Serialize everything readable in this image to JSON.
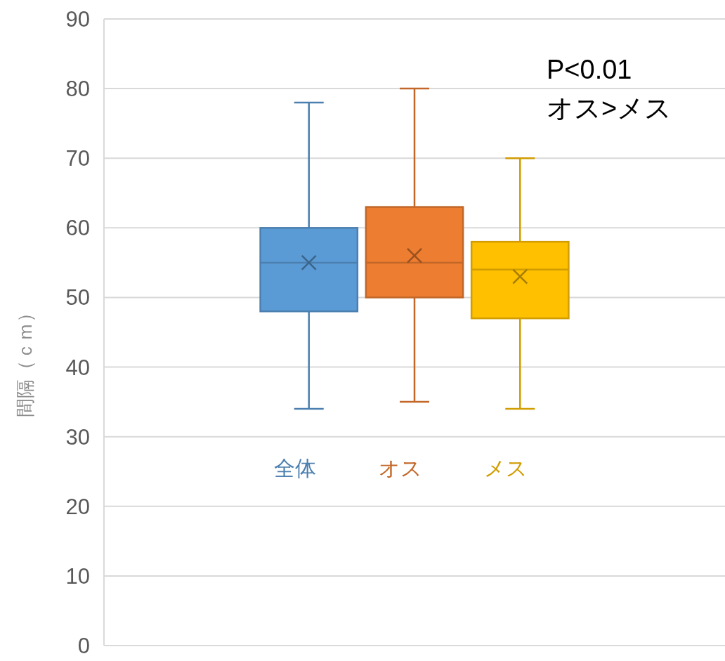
{
  "chart_data": {
    "type": "box",
    "ylabel": "間隔（ｃｍ）",
    "categories": [
      null
    ],
    "series": [
      {
        "name": "全体",
        "color": "#5b9bd5",
        "boxes": [
          {
            "low": 34,
            "q1": 48,
            "median": 55,
            "q3": 60,
            "high": 78,
            "mean": 55
          }
        ]
      },
      {
        "name": "オス",
        "color": "#ed7d31",
        "boxes": [
          {
            "low": 35,
            "q1": 50,
            "median": 55,
            "q3": 63,
            "high": 80,
            "mean": 56
          }
        ]
      },
      {
        "name": "メス",
        "color": "#ffc000",
        "boxes": [
          {
            "low": 34,
            "q1": 47,
            "median": 54,
            "q3": 58,
            "high": 70,
            "mean": 53
          }
        ]
      }
    ],
    "ylim": [
      0,
      90
    ],
    "yticks": [
      0,
      10,
      20,
      30,
      40,
      50,
      60,
      70,
      80,
      90
    ],
    "grid": "y",
    "annotations": [
      "P<0.01",
      "オス>メス"
    ]
  }
}
